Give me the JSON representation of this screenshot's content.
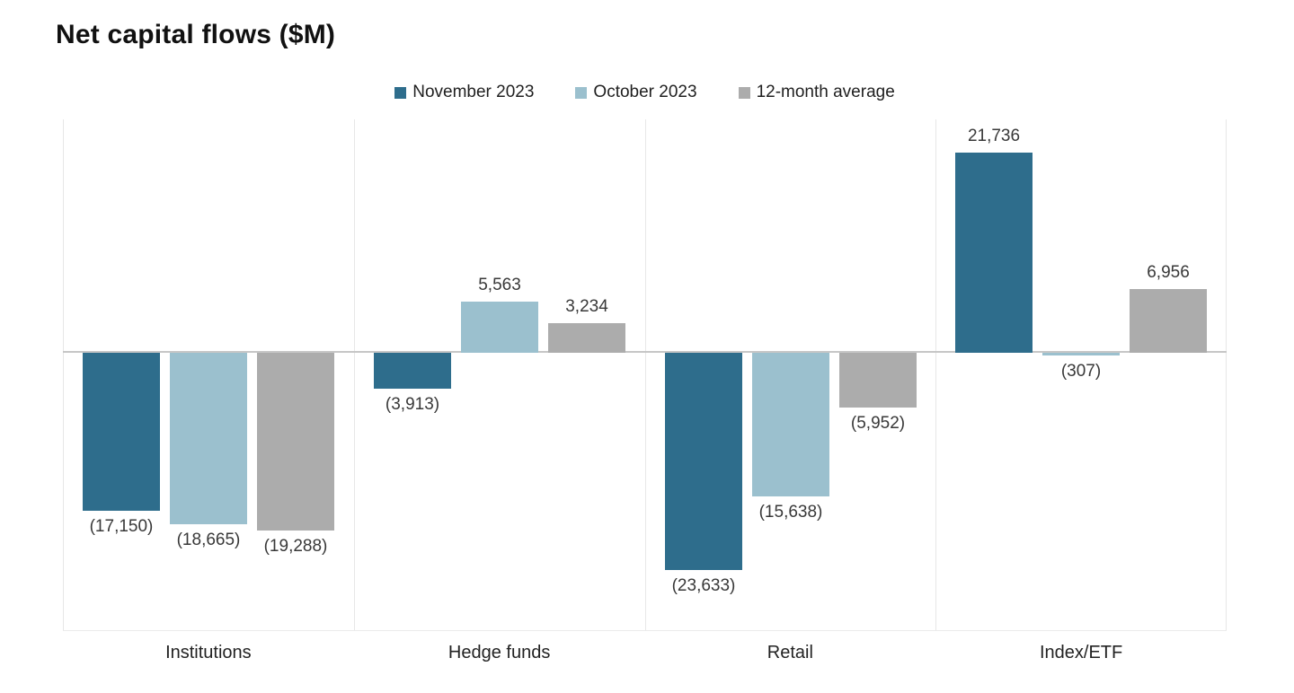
{
  "chart_data": {
    "type": "bar",
    "title": "Net capital flows ($M)",
    "categories": [
      "Institutions",
      "Hedge funds",
      "Retail",
      "Index/ETF"
    ],
    "series": [
      {
        "name": "November 2023",
        "color": "#2E6D8C",
        "values": [
          -17150,
          -3913,
          -23633,
          21736
        ],
        "value_labels": [
          "(17,150)",
          "(3,913)",
          "(23,633)",
          "21,736"
        ]
      },
      {
        "name": "October 2023",
        "color": "#9BC0CE",
        "values": [
          -18665,
          5563,
          -15638,
          -307
        ],
        "value_labels": [
          "(18,665)",
          "5,563",
          "(15,638)",
          "(307)"
        ]
      },
      {
        "name": "12-month average",
        "color": "#ACACAC",
        "values": [
          -19288,
          3234,
          -5952,
          6956
        ],
        "value_labels": [
          "(19,288)",
          "3,234",
          "(5,952)",
          "6,956"
        ]
      }
    ],
    "legend_position": "top",
    "legend_labels": [
      "November 2023",
      "October 2023",
      "12-month average"
    ],
    "value_axis": {
      "visible": false,
      "approx_range": [
        -30000,
        25000
      ]
    },
    "grid": {
      "vertical": true,
      "horizontal": false
    },
    "negative_format": "parentheses",
    "xlabel": "",
    "ylabel": ""
  }
}
